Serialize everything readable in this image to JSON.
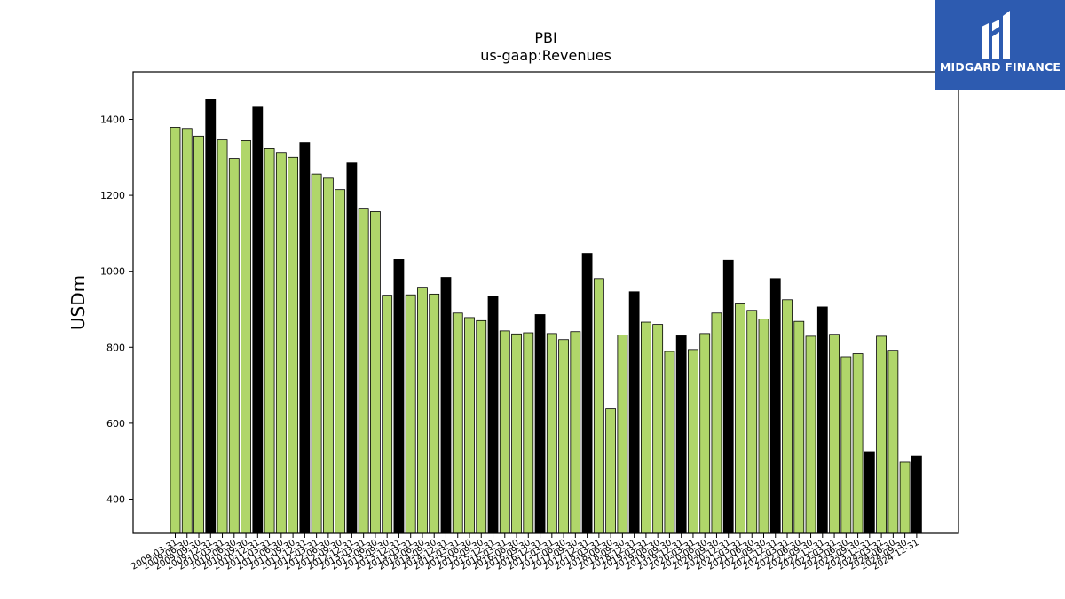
{
  "logo": {
    "text": "MIDGARD FINANCE",
    "icon": "midgard-m-logo-icon"
  },
  "colors": {
    "bar_regular": "#b0d66a",
    "bar_annual": "#000000",
    "logo_bg": "#2d5bb0"
  },
  "chart_data": {
    "type": "bar",
    "title": "PBI",
    "subtitle": "us-gaap:Revenues",
    "xlabel": "",
    "ylabel": "USDm",
    "ylim": [
      310,
      1525
    ],
    "yticks": [
      400,
      600,
      800,
      1000,
      1200,
      1400
    ],
    "grid": false,
    "categories": [
      "2009-03-31",
      "2009-06-30",
      "2009-09-30",
      "2009-12-31",
      "2010-03-31",
      "2010-06-30",
      "2010-09-30",
      "2010-12-31",
      "2011-03-31",
      "2011-06-30",
      "2011-09-30",
      "2011-12-31",
      "2012-03-31",
      "2012-06-30",
      "2012-09-30",
      "2012-12-31",
      "2013-03-31",
      "2013-06-30",
      "2013-09-30",
      "2013-12-31",
      "2014-03-31",
      "2014-06-30",
      "2014-09-30",
      "2014-12-31",
      "2015-03-31",
      "2015-06-30",
      "2015-09-30",
      "2015-12-31",
      "2016-03-31",
      "2016-06-30",
      "2016-09-30",
      "2016-12-31",
      "2017-03-31",
      "2017-06-30",
      "2017-09-30",
      "2017-12-31",
      "2018-03-31",
      "2018-06-30",
      "2018-09-30",
      "2018-12-31",
      "2019-03-31",
      "2019-06-30",
      "2019-09-30",
      "2019-12-31",
      "2020-03-31",
      "2020-06-30",
      "2020-09-30",
      "2020-12-31",
      "2021-03-31",
      "2021-06-30",
      "2021-09-30",
      "2021-12-31",
      "2022-03-31",
      "2022-06-30",
      "2022-09-30",
      "2022-12-31",
      "2023-03-31",
      "2023-06-30",
      "2023-09-30",
      "2023-12-31",
      "2024-03-31",
      "2024-06-30",
      "2024-09-30",
      "2024-12-31"
    ],
    "values": [
      1379,
      1376,
      1356,
      1453,
      1346,
      1297,
      1344,
      1432,
      1323,
      1313,
      1300,
      1339,
      1256,
      1245,
      1215,
      1285,
      1166,
      1157,
      937,
      1031,
      938,
      958,
      940,
      984,
      890,
      878,
      870,
      935,
      843,
      835,
      838,
      886,
      836,
      820,
      841,
      1047,
      981,
      638,
      832,
      946,
      866,
      860,
      789,
      830,
      794,
      836,
      890,
      1029,
      914,
      897,
      874,
      981,
      925,
      868,
      829,
      906,
      834,
      775,
      783,
      525,
      829,
      792,
      497,
      513
    ],
    "annual_flags": [
      false,
      false,
      false,
      true,
      false,
      false,
      false,
      true,
      false,
      false,
      false,
      true,
      false,
      false,
      false,
      true,
      false,
      false,
      false,
      true,
      false,
      false,
      false,
      true,
      false,
      false,
      false,
      true,
      false,
      false,
      false,
      true,
      false,
      false,
      false,
      true,
      false,
      false,
      false,
      true,
      false,
      false,
      false,
      true,
      false,
      false,
      false,
      true,
      false,
      false,
      false,
      true,
      false,
      false,
      false,
      true,
      false,
      false,
      false,
      true,
      false,
      false,
      false,
      true
    ]
  }
}
